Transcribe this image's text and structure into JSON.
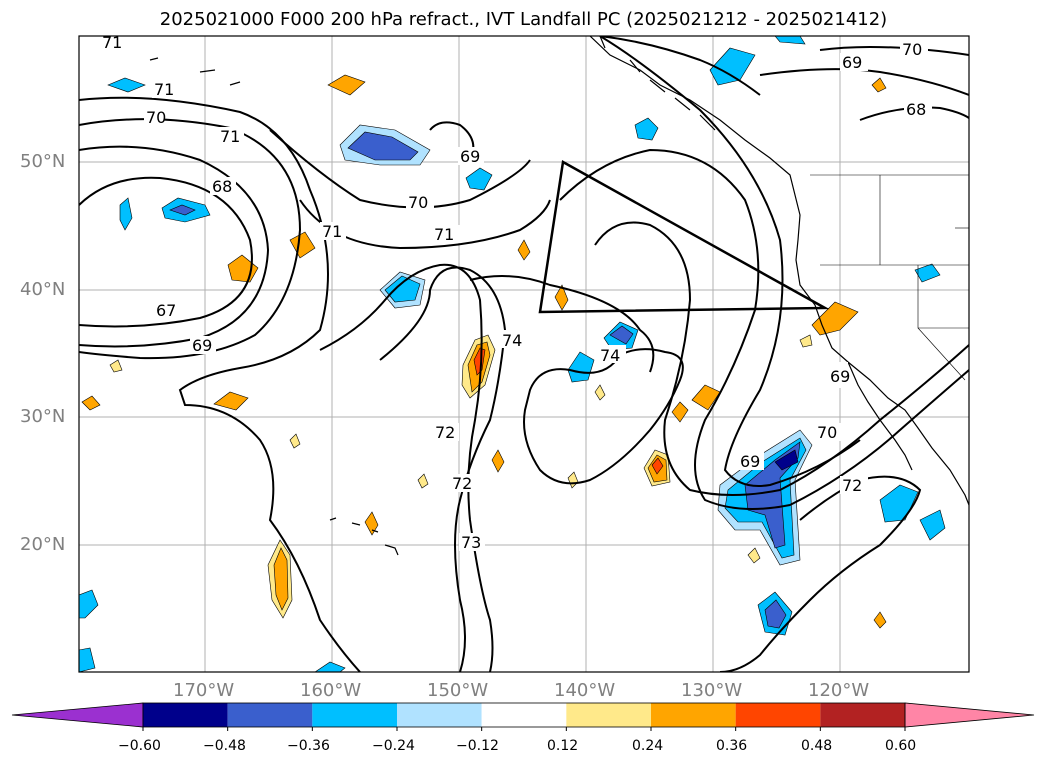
{
  "title": "2025021000 F000 200 hPa refract., IVT Landfall PC (2025021212 - 2025021412)",
  "lat_labels": [
    "50°N",
    "40°N",
    "30°N",
    "20°N"
  ],
  "lon_labels": [
    "170°W",
    "160°W",
    "150°W",
    "140°W",
    "130°W",
    "120°W"
  ],
  "colorbar": {
    "ticks": [
      "−0.60",
      "−0.48",
      "−0.36",
      "−0.24",
      "−0.12",
      "0.12",
      "0.24",
      "0.36",
      "0.48",
      "0.60"
    ],
    "colors": [
      "#9b30d0",
      "#00008b",
      "#3a5fcd",
      "#00bfff",
      "#b0e2ff",
      "#ffffff",
      "#ffe98a",
      "#ffa500",
      "#ff4500",
      "#b22222",
      "#ff85a6"
    ]
  },
  "contour_labels": [
    "71",
    "71",
    "71",
    "70",
    "71",
    "68",
    "67",
    "69",
    "69",
    "70",
    "71",
    "74",
    "74",
    "72",
    "72",
    "73",
    "69",
    "69",
    "70",
    "72",
    "69",
    "70",
    "68"
  ]
}
